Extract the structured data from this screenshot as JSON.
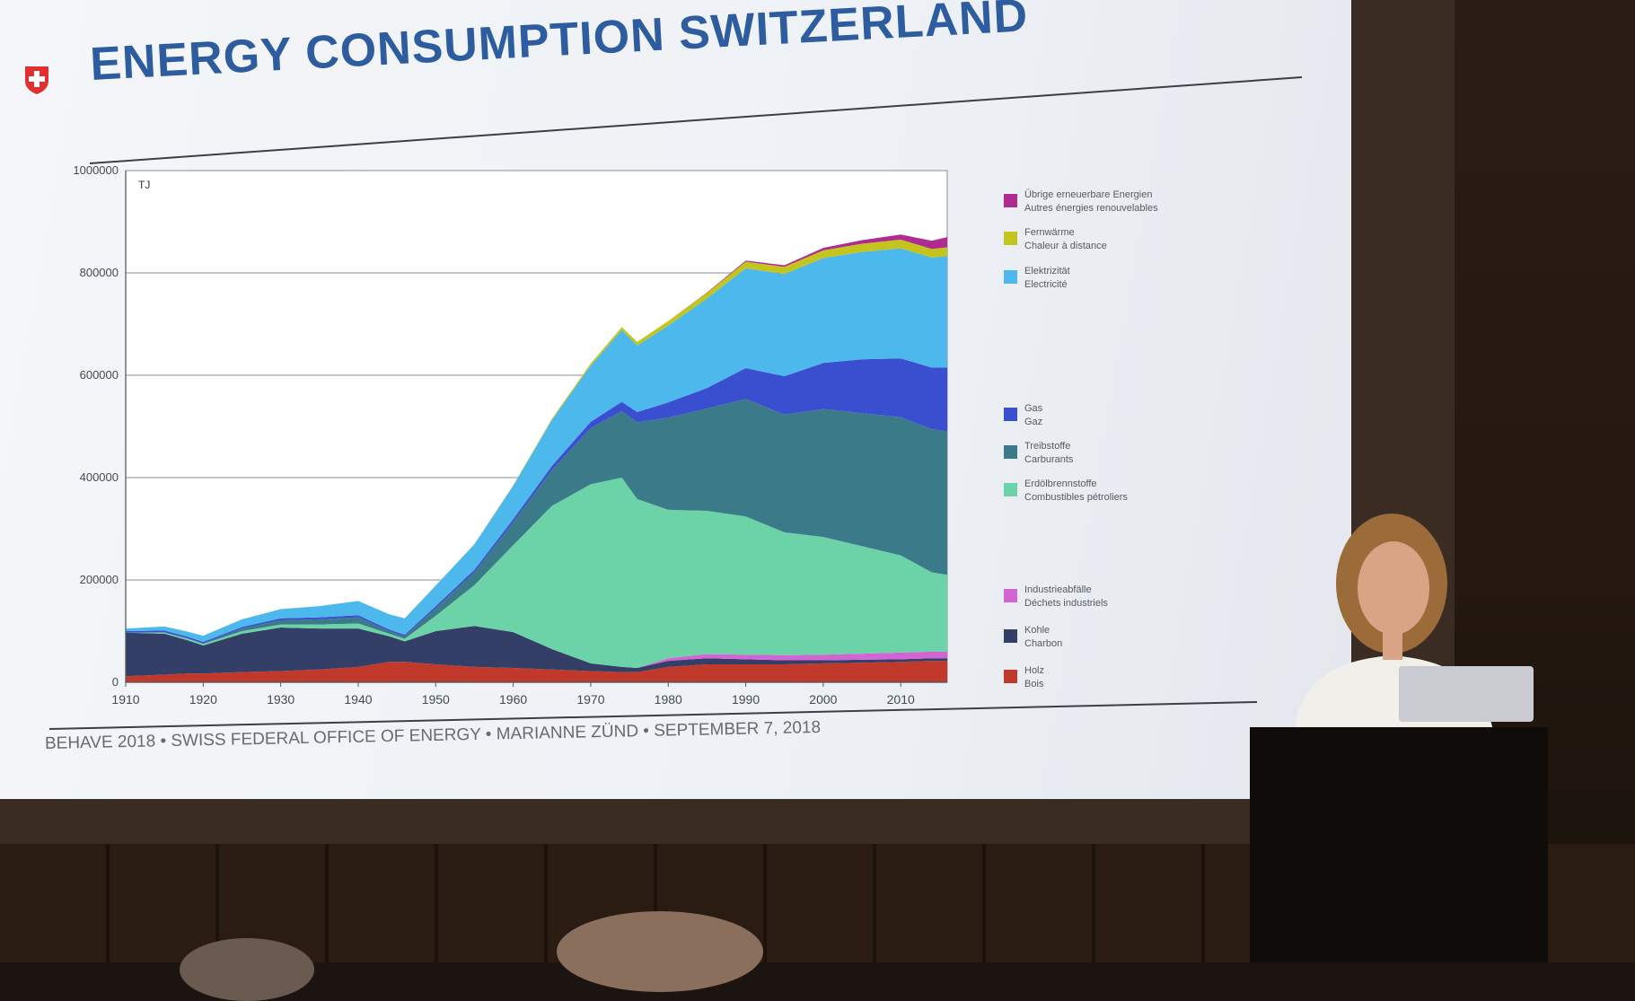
{
  "slide": {
    "title": "ENERGY CONSUMPTION SWITZERLAND",
    "footer": "BEHAVE 2018 • SWISS FEDERAL OFFICE OF ENERGY • MARIANNE ZÜND • SEPTEMBER 7, 2018"
  },
  "colors": {
    "title": "#2d5c9f",
    "slide_bg": "#f2f4f7",
    "room_bg": "#241810"
  },
  "icons": {
    "logo": "swiss-cross-shield-icon"
  },
  "chart_data": {
    "type": "area",
    "stacked": true,
    "unit": "TJ",
    "ylim": [
      0,
      1000000
    ],
    "xlim": [
      1910,
      2016
    ],
    "y_ticks": [
      "0",
      "200000",
      "400000",
      "600000",
      "800000",
      "1000000"
    ],
    "x_ticks": [
      "1910",
      "1920",
      "1930",
      "1940",
      "1950",
      "1960",
      "1970",
      "1980",
      "1990",
      "2000",
      "2010"
    ],
    "grid": true,
    "legend_position": "right",
    "x": [
      1910,
      1915,
      1918,
      1920,
      1925,
      1930,
      1935,
      1940,
      1944,
      1946,
      1950,
      1955,
      1960,
      1965,
      1970,
      1974,
      1976,
      1980,
      1985,
      1990,
      1995,
      2000,
      2005,
      2010,
      2014,
      2016
    ],
    "series": [
      {
        "name": "Holz / Bois",
        "color": "#c0392b",
        "values": [
          12000,
          15000,
          17000,
          17000,
          20000,
          22000,
          25000,
          30000,
          40000,
          40000,
          35000,
          30000,
          28000,
          25000,
          22000,
          20000,
          20000,
          30000,
          35000,
          35000,
          35000,
          37000,
          38000,
          40000,
          42000,
          42000
        ]
      },
      {
        "name": "Kohle / Charbon",
        "color": "#333f66",
        "values": [
          85000,
          80000,
          65000,
          55000,
          75000,
          85000,
          80000,
          75000,
          50000,
          40000,
          65000,
          80000,
          70000,
          40000,
          15000,
          10000,
          8000,
          12000,
          12000,
          10000,
          8000,
          6000,
          6000,
          5000,
          5000,
          5000
        ]
      },
      {
        "name": "Industrieabfälle / Déchets industriels",
        "color": "#d364d3",
        "values": [
          0,
          0,
          0,
          0,
          0,
          0,
          0,
          0,
          0,
          0,
          0,
          0,
          0,
          0,
          0,
          0,
          0,
          5000,
          8000,
          9000,
          10000,
          11000,
          12000,
          13000,
          13000,
          13000
        ]
      },
      {
        "name": "Erdölbrennstoffe / Combustibles pétroliers",
        "color": "#6cd3a8",
        "values": [
          0,
          2000,
          3000,
          3000,
          5000,
          6000,
          8000,
          10000,
          5000,
          5000,
          30000,
          80000,
          170000,
          280000,
          350000,
          370000,
          330000,
          290000,
          280000,
          270000,
          240000,
          230000,
          210000,
          190000,
          155000,
          150000
        ]
      },
      {
        "name": "Treibstoffe / Carburants",
        "color": "#3a7a89",
        "values": [
          0,
          1000,
          1000,
          1000,
          5000,
          8000,
          10000,
          12000,
          5000,
          5000,
          15000,
          25000,
          45000,
          70000,
          110000,
          130000,
          150000,
          180000,
          200000,
          230000,
          230000,
          250000,
          260000,
          270000,
          280000,
          280000
        ]
      },
      {
        "name": "Gas / Gaz",
        "color": "#3a4fd0",
        "values": [
          3000,
          3000,
          3000,
          3000,
          3000,
          4000,
          4000,
          4000,
          3000,
          3000,
          4000,
          5000,
          6000,
          8000,
          12000,
          18000,
          20000,
          30000,
          40000,
          60000,
          75000,
          90000,
          105000,
          115000,
          120000,
          125000
        ]
      },
      {
        "name": "Elektrizität / Electricité",
        "color": "#4cb8ec",
        "values": [
          5000,
          8000,
          10000,
          12000,
          15000,
          18000,
          22000,
          28000,
          30000,
          32000,
          40000,
          50000,
          65000,
          90000,
          110000,
          140000,
          130000,
          150000,
          175000,
          195000,
          200000,
          205000,
          210000,
          215000,
          215000,
          218000
        ]
      },
      {
        "name": "Fernwärme / Chaleur à distance",
        "color": "#c4c41e",
        "values": [
          0,
          0,
          0,
          0,
          0,
          0,
          0,
          0,
          0,
          0,
          0,
          0,
          1000,
          2000,
          4000,
          6000,
          7000,
          9000,
          11000,
          13000,
          14000,
          15000,
          16000,
          17000,
          17000,
          17000
        ]
      },
      {
        "name": "Übrige erneuerbare Energien / Autres énergies renouvelables",
        "color": "#b02b8f",
        "values": [
          0,
          0,
          0,
          0,
          0,
          0,
          0,
          0,
          0,
          0,
          0,
          0,
          0,
          0,
          0,
          0,
          0,
          0,
          1000,
          2000,
          3000,
          5000,
          7000,
          10000,
          16000,
          20000
        ]
      }
    ]
  },
  "legend": [
    {
      "line1": "Übrige erneuerbare Energien",
      "line2": "Autres énergies renouvelables",
      "color": "#b02b8f"
    },
    {
      "line1": "Fernwärme",
      "line2": "Chaleur à distance",
      "color": "#c4c41e"
    },
    {
      "line1": "Elektrizität",
      "line2": "Electricité",
      "color": "#4cb8ec"
    },
    {
      "line1": "Gas",
      "line2": "Gaz",
      "color": "#3a4fd0"
    },
    {
      "line1": "Treibstoffe",
      "line2": "Carburants",
      "color": "#3a7a89"
    },
    {
      "line1": "Erdölbrennstoffe",
      "line2": "Combustibles pétroliers",
      "color": "#6cd3a8"
    },
    {
      "line1": "Industrieabfälle",
      "line2": "Déchets industriels",
      "color": "#d364d3"
    },
    {
      "line1": "Kohle",
      "line2": "Charbon",
      "color": "#333f66"
    },
    {
      "line1": "Holz",
      "line2": "Bois",
      "color": "#c0392b"
    }
  ]
}
